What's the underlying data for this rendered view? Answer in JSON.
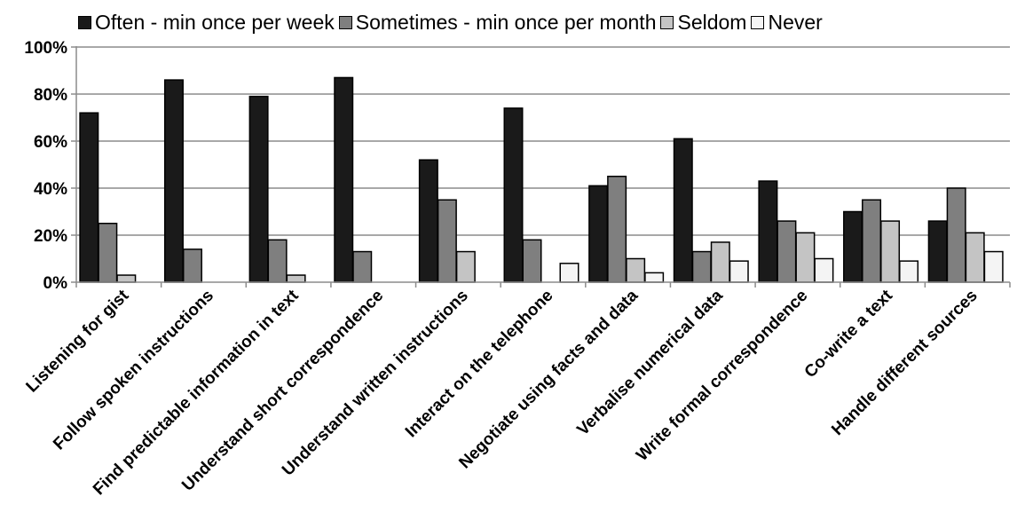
{
  "chart_data": {
    "type": "bar",
    "title": "",
    "xlabel": "",
    "ylabel": "",
    "ylim": [
      0,
      100
    ],
    "y_ticks": [
      "0%",
      "20%",
      "40%",
      "60%",
      "80%",
      "100%"
    ],
    "y_tick_values": [
      0,
      20,
      40,
      60,
      80,
      100
    ],
    "grid": true,
    "legend_position": "top",
    "categories": [
      "Listening for gist",
      "Follow spoken instructions",
      "Find predictable information in text",
      "Understand short correspondence",
      "Understand written instructions",
      "Interact on the telephone",
      "Negotiate using facts and data",
      "Verbalise numerical data",
      "Write formal correspondence",
      "Co-write a text",
      "Handle different sources"
    ],
    "series": [
      {
        "name": "Often - min once per week",
        "color": "#1a1a1a",
        "values": [
          72,
          86,
          79,
          87,
          52,
          74,
          41,
          61,
          43,
          30,
          26
        ]
      },
      {
        "name": "Sometimes - min once per month",
        "color": "#7f7f7f",
        "values": [
          25,
          14,
          18,
          13,
          35,
          18,
          45,
          13,
          26,
          35,
          40
        ]
      },
      {
        "name": "Seldom",
        "color": "#c4c4c4",
        "values": [
          3,
          0,
          3,
          0,
          13,
          0,
          10,
          17,
          21,
          26,
          21
        ]
      },
      {
        "name": "Never",
        "color": "#f4f4f4",
        "values": [
          0,
          0,
          0,
          0,
          0,
          8,
          4,
          9,
          10,
          9,
          13
        ]
      }
    ]
  }
}
